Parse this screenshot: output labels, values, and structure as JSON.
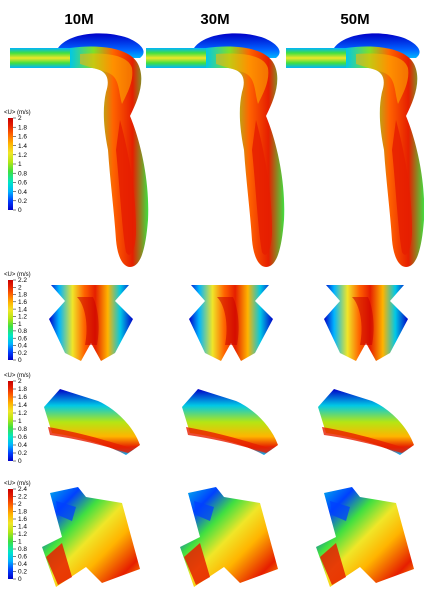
{
  "column_titles": [
    "10M",
    "30M",
    "50M"
  ],
  "colorbars": [
    {
      "title": "<U> (m/s)",
      "ticks": [
        "2",
        "1.8",
        "1.6",
        "1.4",
        "1.2",
        "1",
        "0.8",
        "0.6",
        "0.4",
        "0.2",
        "0"
      ]
    },
    {
      "title": "<U> (m/s)",
      "ticks": [
        "2.2",
        "2",
        "1.8",
        "1.6",
        "1.4",
        "1.2",
        "1",
        "0.8",
        "0.6",
        "0.4",
        "0.2",
        "0"
      ]
    },
    {
      "title": "<U> (m/s)",
      "ticks": [
        "2",
        "1.8",
        "1.6",
        "1.4",
        "1.2",
        "1",
        "0.8",
        "0.6",
        "0.4",
        "0.2",
        "0"
      ]
    },
    {
      "title": "<U> (m/s)",
      "ticks": [
        "2.4",
        "2.2",
        "2",
        "1.8",
        "1.6",
        "1.4",
        "1.2",
        "1",
        "0.8",
        "0.6",
        "0.4",
        "0.2",
        "0"
      ]
    }
  ],
  "colormap": [
    "#0000c8",
    "#0040ff",
    "#00b4ff",
    "#00e6c8",
    "#40e040",
    "#b4e614",
    "#f0e628",
    "#ffb400",
    "#ff6400",
    "#e61e00",
    "#c80000"
  ]
}
